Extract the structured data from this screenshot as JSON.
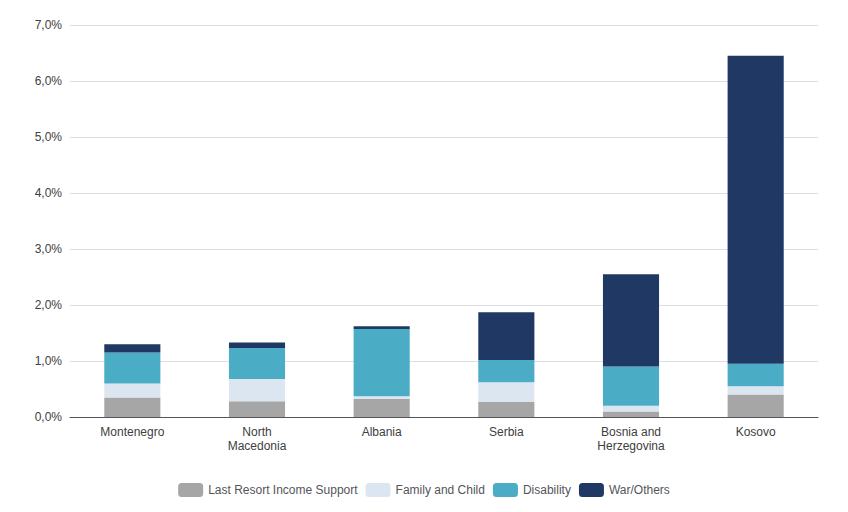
{
  "chart_data": {
    "type": "bar",
    "stacked": true,
    "categories": [
      "Montenegro",
      "North\nMacedonia",
      "Albania",
      "Serbia",
      "Bosnia and\nHerzegovina",
      "Kosovo"
    ],
    "series": [
      {
        "name": "Last Resort Income Support",
        "color": "#a6a6a6",
        "values": [
          0.0035,
          0.0028,
          0.0032,
          0.0027,
          0.001,
          0.004
        ]
      },
      {
        "name": "Family and Child",
        "color": "#dce6f1",
        "values": [
          0.0025,
          0.004,
          0.0005,
          0.0035,
          0.001,
          0.0015
        ]
      },
      {
        "name": "Disability",
        "color": "#4bacc6",
        "values": [
          0.0055,
          0.0055,
          0.012,
          0.004,
          0.007,
          0.004
        ]
      },
      {
        "name": "War/Others",
        "color": "#1f3864",
        "values": [
          0.0015,
          0.001,
          0.0005,
          0.0085,
          0.0165,
          0.055
        ]
      }
    ],
    "ylim": [
      0,
      0.07
    ],
    "yticks": [
      {
        "value": 0.0,
        "label": "0,0%"
      },
      {
        "value": 0.01,
        "label": "1,0%"
      },
      {
        "value": 0.02,
        "label": "2,0%"
      },
      {
        "value": 0.03,
        "label": "3,0%"
      },
      {
        "value": 0.04,
        "label": "4,0%"
      },
      {
        "value": 0.05,
        "label": "5,0%"
      },
      {
        "value": 0.06,
        "label": "6,0%"
      },
      {
        "value": 0.07,
        "label": "7,0%"
      }
    ],
    "grid": true,
    "legend": "bottom"
  }
}
